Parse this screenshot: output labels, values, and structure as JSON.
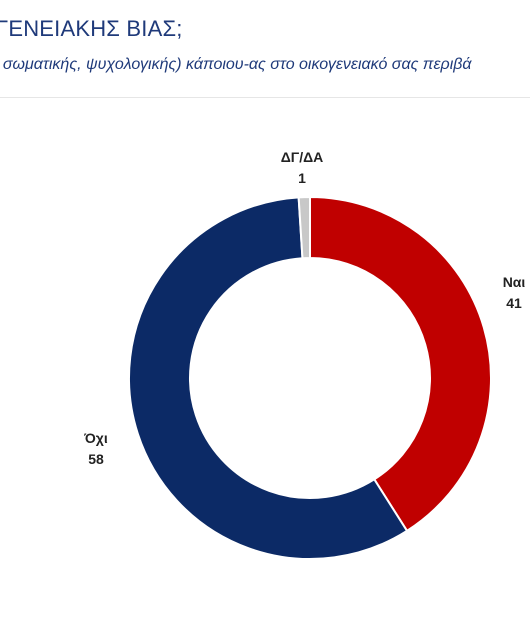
{
  "header": {
    "title": "ΓΕΝΕΙΑΚΗΣ ΒΙΑΣ;",
    "subtitle": ", σωματικής, ψυχολογικής) κάποιου-ας στο οικογενειακό σας περιβά"
  },
  "chart_data": {
    "type": "pie",
    "donut": true,
    "categories": [
      "Ναι",
      "Όχι",
      "ΔΓ/ΔΑ"
    ],
    "values": [
      41,
      58,
      1
    ],
    "colors": [
      "#c00000",
      "#0c2a66",
      "#c8c8c8"
    ]
  }
}
